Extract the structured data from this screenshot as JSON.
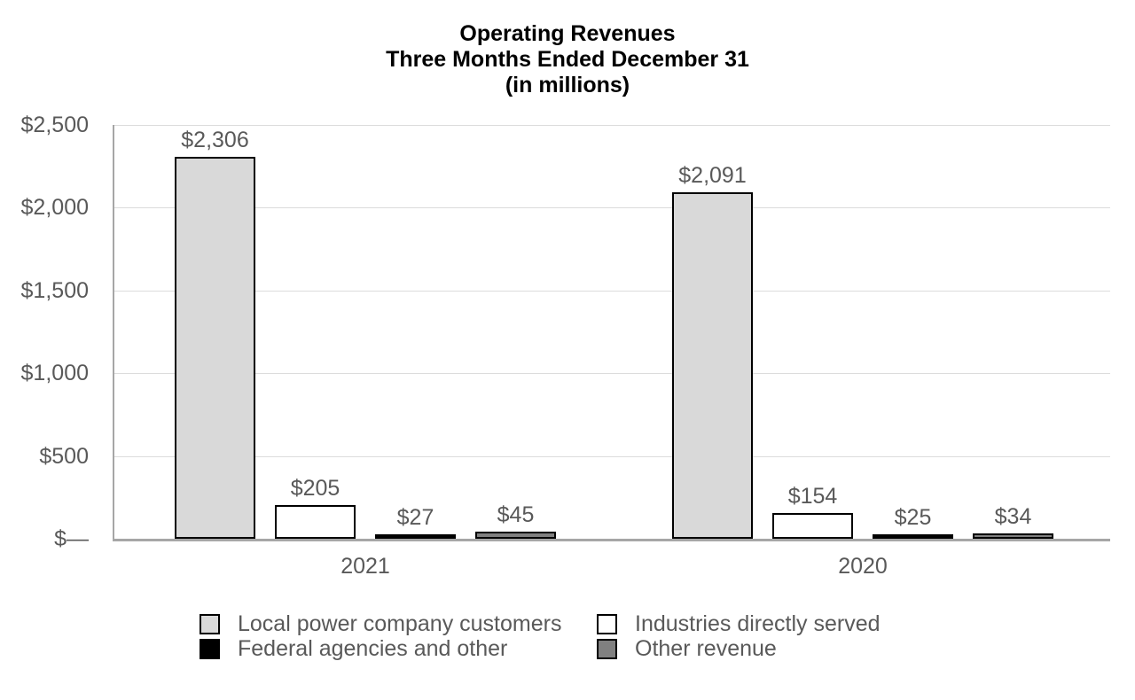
{
  "title": {
    "lines": [
      "Operating Revenues",
      "Three Months Ended December 31",
      "(in millions)"
    ]
  },
  "chart_data": {
    "type": "bar",
    "title": "Operating Revenues",
    "subtitle": "Three Months Ended December 31",
    "units_note": "(in millions)",
    "categories": [
      "2021",
      "2020"
    ],
    "series": [
      {
        "name": "Local power company customers",
        "color": "#d9d9d9",
        "values": [
          2306,
          2091
        ],
        "labels": [
          "$2,306",
          "$2,091"
        ]
      },
      {
        "name": "Industries directly served",
        "color": "#ffffff",
        "values": [
          205,
          154
        ],
        "labels": [
          "$205",
          "$154"
        ]
      },
      {
        "name": "Federal agencies and other",
        "color": "#000000",
        "values": [
          27,
          25
        ],
        "labels": [
          "$27",
          "$25"
        ]
      },
      {
        "name": "Other revenue",
        "color": "#808080",
        "values": [
          45,
          34
        ],
        "labels": [
          "$45",
          "$34"
        ]
      }
    ],
    "y_axis": {
      "min": 0,
      "max": 2500,
      "ticks": [
        {
          "label": "$2,500",
          "value": 2500
        },
        {
          "label": "$2,000",
          "value": 2000
        },
        {
          "label": "$1,500",
          "value": 1500
        },
        {
          "label": "$1,000",
          "value": 1000
        },
        {
          "label": "$500",
          "value": 500
        },
        {
          "label": "$—",
          "value": 0
        }
      ]
    },
    "grid": true,
    "legend_position": "bottom",
    "colors": {
      "bar_border": "#000000",
      "axis_line": "#a6a6a6",
      "gridline": "#dcdcdc",
      "label_text": "#595959",
      "title_text": "#000000"
    }
  },
  "legend": {
    "items": [
      {
        "label": "Local power company customers",
        "color": "#d9d9d9"
      },
      {
        "label": "Industries directly served",
        "color": "#ffffff"
      },
      {
        "label": "Federal agencies and other",
        "color": "#000000"
      },
      {
        "label": "Other revenue",
        "color": "#808080"
      }
    ]
  }
}
